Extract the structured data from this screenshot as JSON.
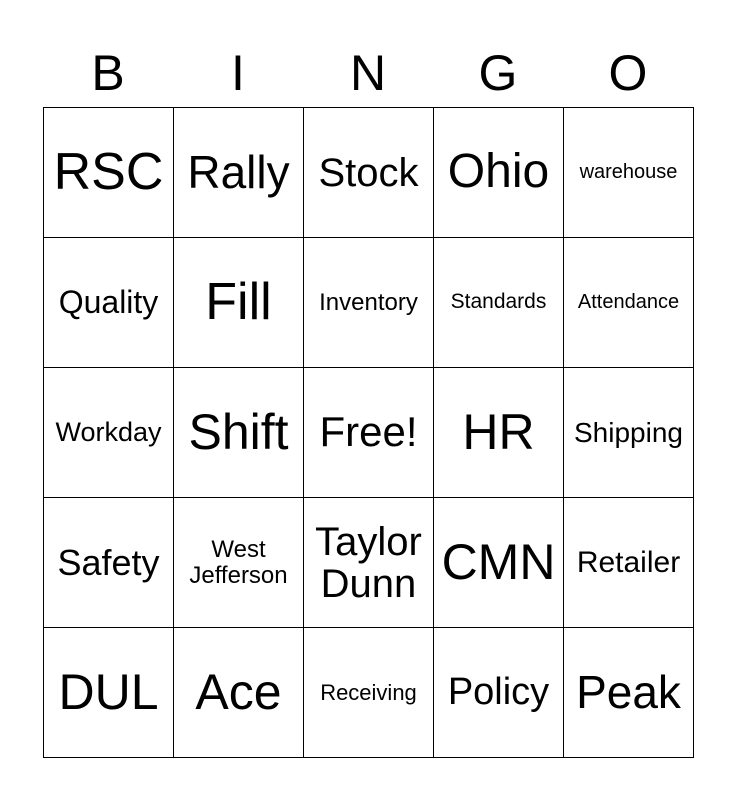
{
  "header": [
    "B",
    "I",
    "N",
    "G",
    "O"
  ],
  "cells": [
    "RSC",
    "Rally",
    "Stock",
    "Ohio",
    "warehouse",
    "Quality",
    "Fill",
    "Inventory",
    "Standards",
    "Attendance",
    "Workday",
    "Shift",
    "Free!",
    "HR",
    "Shipping",
    "Safety",
    "West\nJefferson",
    "Taylor\nDunn",
    "CMN",
    "Retailer",
    "DUL",
    "Ace",
    "Receiving",
    "Policy",
    "Peak"
  ]
}
